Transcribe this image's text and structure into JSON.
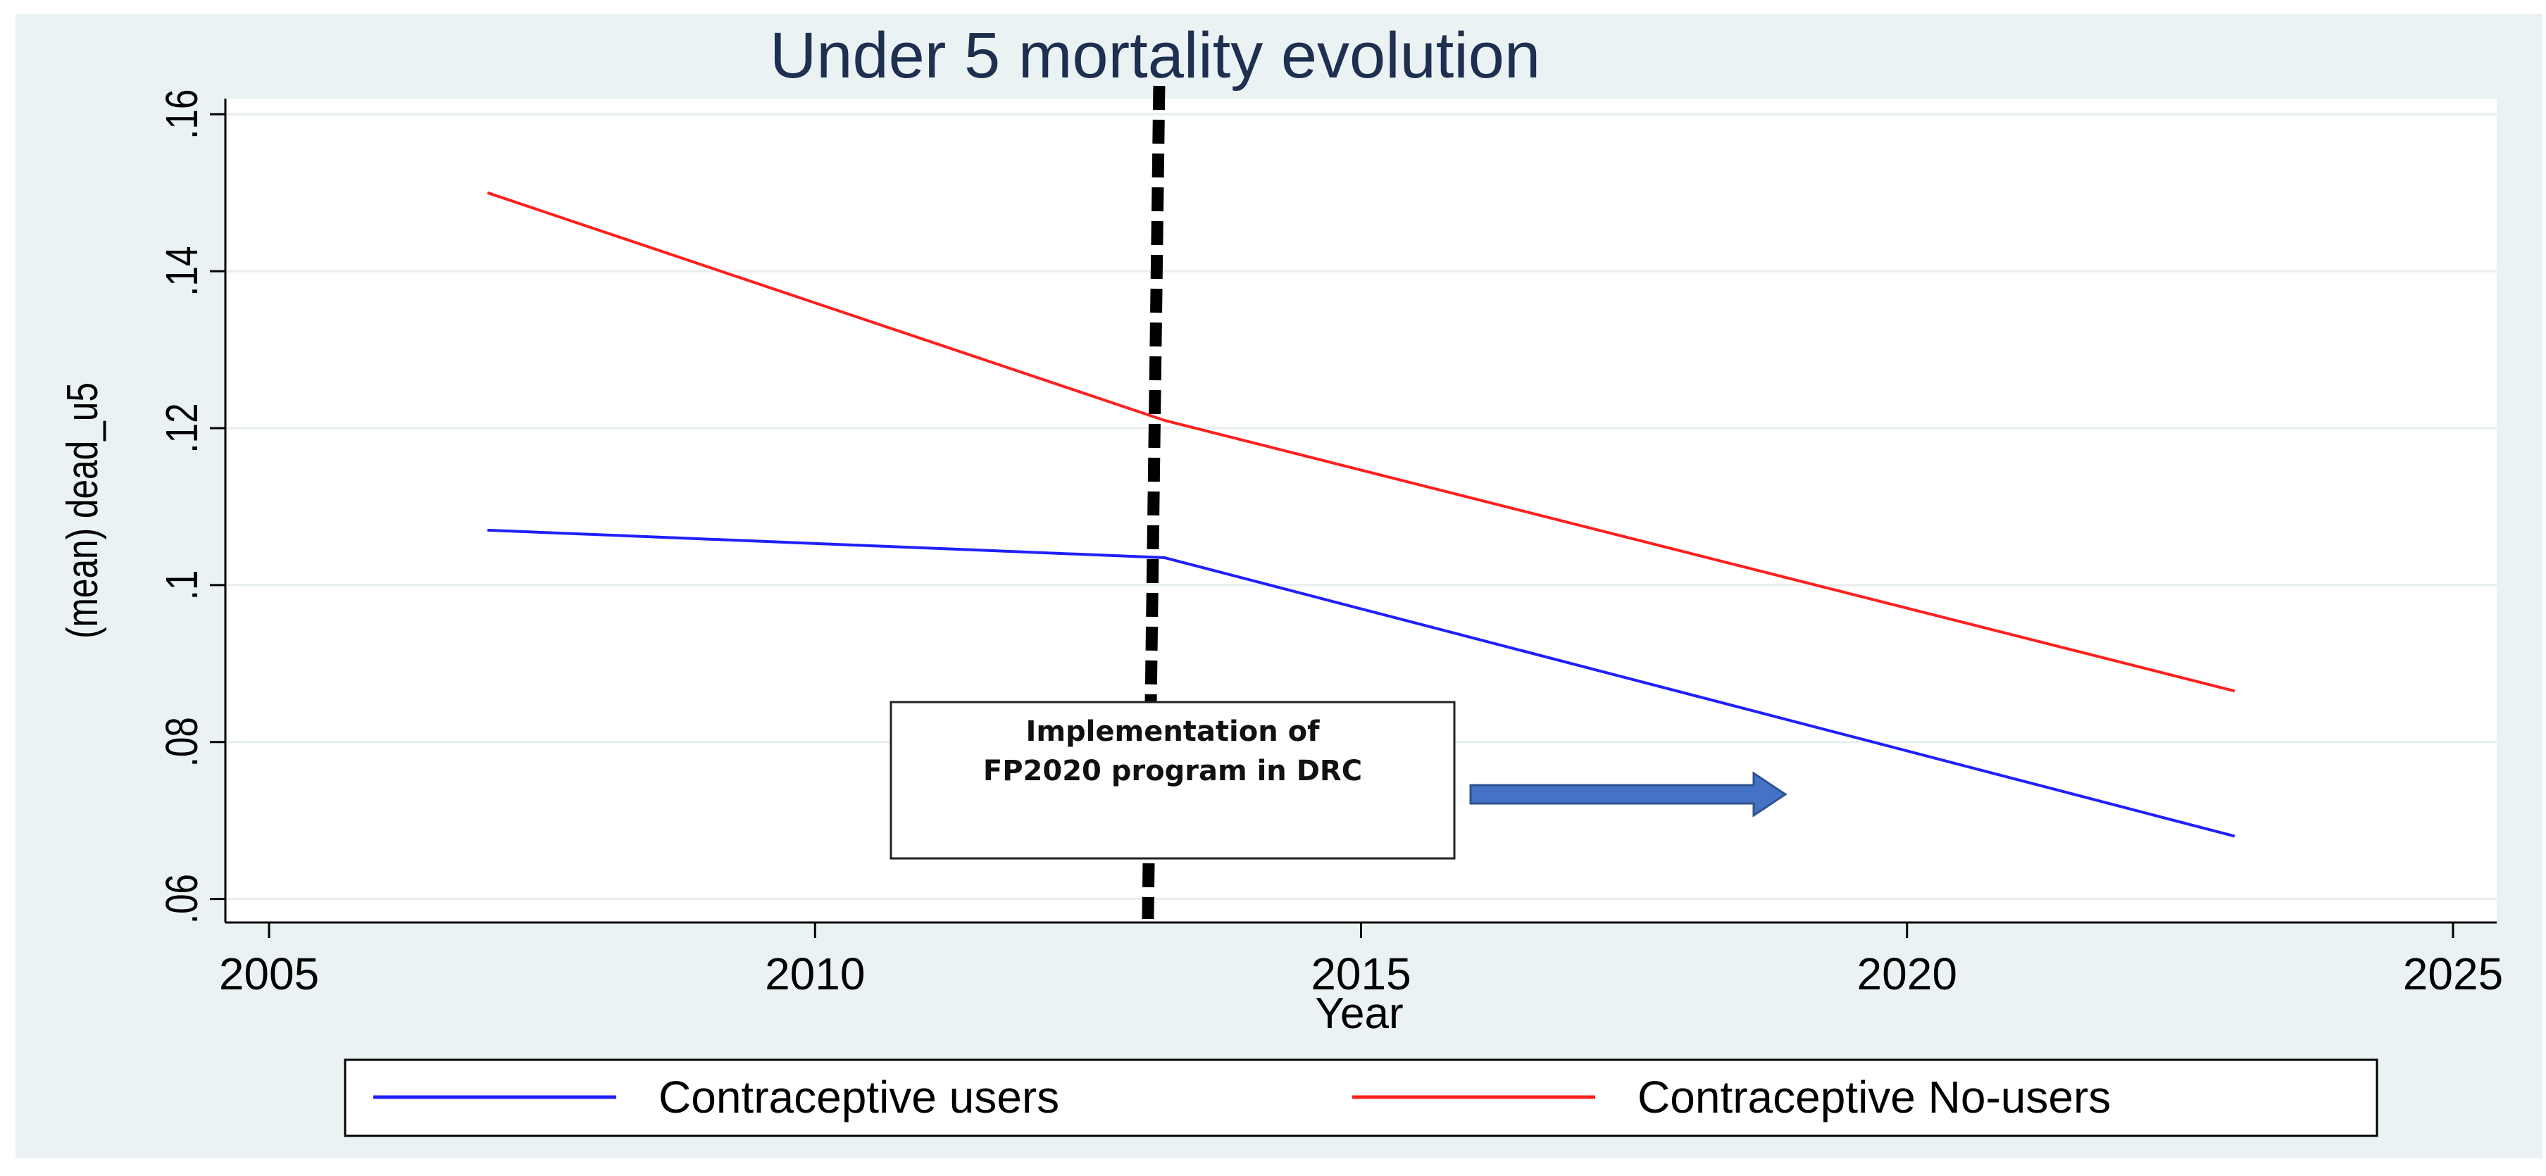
{
  "chart_data": {
    "type": "line",
    "title": "Under 5 mortality evolution",
    "xlabel": "Year",
    "ylabel": "(mean) dead_u5",
    "xlim": [
      2004.6,
      2025.4
    ],
    "ylim": [
      0.057,
      0.162
    ],
    "xticks": [
      2005,
      2010,
      2015,
      2020,
      2025
    ],
    "xtick_labels": [
      "2005",
      "2010",
      "2015",
      "2020",
      "2025"
    ],
    "yticks": [
      0.06,
      0.08,
      0.1,
      0.12,
      0.14,
      0.16
    ],
    "ytick_labels": [
      ".06",
      ".08",
      ".1",
      ".12",
      ".14",
      ".16"
    ],
    "grid": true,
    "series": [
      {
        "name": "Contraceptive users",
        "color": "#1f1fff",
        "x": [
          2007,
          2013.2,
          2023
        ],
        "y": [
          0.107,
          0.1035,
          0.068
        ]
      },
      {
        "name": "Contraceptive No-users",
        "color": "#ff1f1f",
        "x": [
          2007,
          2013.2,
          2023
        ],
        "y": [
          0.15,
          0.121,
          0.0865
        ]
      }
    ],
    "reference_line": {
      "x": 2013.1,
      "style": "dashed",
      "color": "#000000"
    },
    "annotation": {
      "lines": [
        "Implementation of",
        "FP2020 program in DRC"
      ],
      "arrow_direction": "right",
      "arrow_color": "#4472c4"
    },
    "legend": {
      "placement": "bottom",
      "items": [
        "Contraceptive users",
        "Contraceptive No-users"
      ]
    }
  }
}
